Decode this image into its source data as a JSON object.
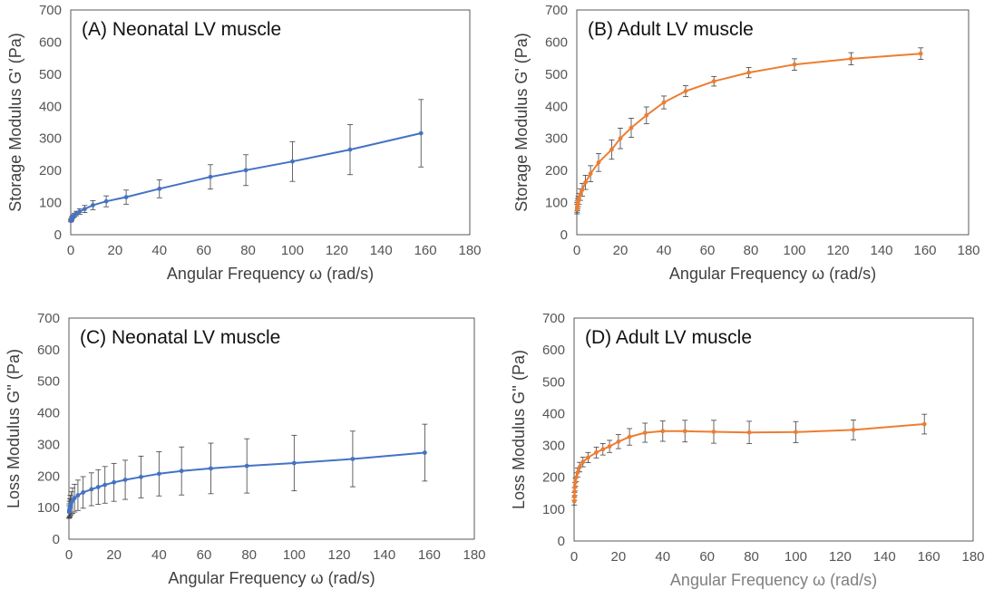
{
  "chart_data": [
    {
      "type": "line",
      "title": "(A) Neonatal LV muscle",
      "xlabel": "Angular Frequency ω (rad/s)",
      "ylabel": "Storage Modulus G' (Pa)",
      "xlim": [
        0,
        180
      ],
      "ylim": [
        0,
        700
      ],
      "xticks": [
        "0",
        "20",
        "40",
        "60",
        "80",
        "100",
        "120",
        "140",
        "160",
        "180"
      ],
      "yticks": [
        "0",
        "100",
        "200",
        "300",
        "400",
        "500",
        "600",
        "700"
      ],
      "color": "#4472c4",
      "grid": false,
      "series": [
        {
          "x": [
            0.1,
            0.16,
            0.25,
            0.4,
            0.63,
            1.0,
            1.6,
            2.5,
            4.0,
            6.3,
            10,
            16,
            25,
            40,
            63,
            79,
            100,
            126,
            158
          ],
          "y": [
            43,
            45,
            47,
            50,
            53,
            57,
            61,
            66,
            72,
            80,
            92,
            104,
            117,
            143,
            180,
            201,
            228,
            265,
            316
          ],
          "err": [
            3,
            3,
            3,
            4,
            4,
            5,
            6,
            7,
            9,
            11,
            14,
            17,
            22,
            28,
            38,
            48,
            62,
            78,
            105
          ]
        }
      ]
    },
    {
      "type": "line",
      "title": "(B) Adult LV muscle",
      "xlabel": "Angular Frequency ω (rad/s)",
      "ylabel": "Storage Modulus G' (Pa)",
      "xlim": [
        0,
        180
      ],
      "ylim": [
        0,
        700
      ],
      "xticks": [
        "0",
        "20",
        "40",
        "60",
        "80",
        "100",
        "120",
        "140",
        "160",
        "180"
      ],
      "yticks": [
        "0",
        "100",
        "200",
        "300",
        "400",
        "500",
        "600",
        "700"
      ],
      "color": "#ed7d31",
      "grid": false,
      "series": [
        {
          "x": [
            0.1,
            0.16,
            0.25,
            0.4,
            0.63,
            1.0,
            1.6,
            2.5,
            4.0,
            6.3,
            10,
            16,
            20,
            25,
            32,
            40,
            50,
            63,
            79,
            100,
            126,
            158
          ],
          "y": [
            80,
            85,
            90,
            96,
            103,
            112,
            125,
            140,
            163,
            190,
            225,
            265,
            300,
            333,
            372,
            412,
            447,
            478,
            505,
            530,
            548,
            564
          ],
          "err": [
            15,
            15,
            15,
            16,
            16,
            17,
            18,
            20,
            22,
            25,
            28,
            30,
            32,
            30,
            26,
            20,
            17,
            15,
            16,
            18,
            19,
            18
          ]
        }
      ]
    },
    {
      "type": "line",
      "title": "(C) Neonatal LV muscle",
      "xlabel": "Angular Frequency ω (rad/s)",
      "ylabel": "Loss Modulus G'' (Pa)",
      "xlim": [
        0,
        180
      ],
      "ylim": [
        0,
        700
      ],
      "xticks": [
        "0",
        "20",
        "40",
        "60",
        "80",
        "100",
        "120",
        "140",
        "160",
        "180"
      ],
      "yticks": [
        "0",
        "100",
        "200",
        "300",
        "400",
        "500",
        "600",
        "700"
      ],
      "color": "#4472c4",
      "grid": false,
      "series": [
        {
          "x": [
            0.1,
            0.16,
            0.25,
            0.4,
            0.63,
            1.0,
            1.6,
            2.5,
            4.0,
            6.3,
            10,
            13,
            16,
            20,
            25,
            32,
            40,
            50,
            63,
            79,
            100,
            126,
            158
          ],
          "y": [
            86,
            90,
            95,
            100,
            107,
            114,
            122,
            130,
            139,
            148,
            158,
            165,
            172,
            180,
            188,
            197,
            207,
            216,
            224,
            232,
            241,
            254,
            274
          ],
          "err": [
            20,
            22,
            25,
            28,
            32,
            36,
            40,
            44,
            48,
            50,
            52,
            55,
            58,
            60,
            62,
            66,
            70,
            76,
            80,
            86,
            88,
            88,
            90
          ]
        }
      ]
    },
    {
      "type": "line",
      "title": "(D) Adult LV muscle",
      "xlabel": "Angular Frequency ω (rad/s)",
      "ylabel": "Loss Modulus G'' (Pa)",
      "xlim": [
        0,
        180
      ],
      "ylim": [
        0,
        700
      ],
      "xticks": [
        "0",
        "20",
        "40",
        "60",
        "80",
        "100",
        "120",
        "140",
        "160",
        "180"
      ],
      "yticks": [
        "0",
        "100",
        "200",
        "300",
        "400",
        "500",
        "600",
        "700"
      ],
      "color": "#ed7d31",
      "grid": false,
      "series": [
        {
          "x": [
            0.1,
            0.16,
            0.25,
            0.4,
            0.63,
            1.0,
            1.6,
            2.5,
            4.0,
            6.3,
            10,
            13,
            16,
            20,
            25,
            32,
            40,
            50,
            63,
            79,
            100,
            126,
            158
          ],
          "y": [
            125,
            140,
            155,
            170,
            185,
            200,
            215,
            232,
            248,
            262,
            278,
            288,
            297,
            312,
            327,
            340,
            345,
            345,
            343,
            341,
            342,
            349,
            367
          ],
          "err": [
            12,
            12,
            12,
            13,
            13,
            14,
            14,
            15,
            15,
            16,
            17,
            18,
            19,
            22,
            26,
            30,
            32,
            34,
            36,
            35,
            33,
            31,
            31
          ]
        }
      ]
    }
  ]
}
